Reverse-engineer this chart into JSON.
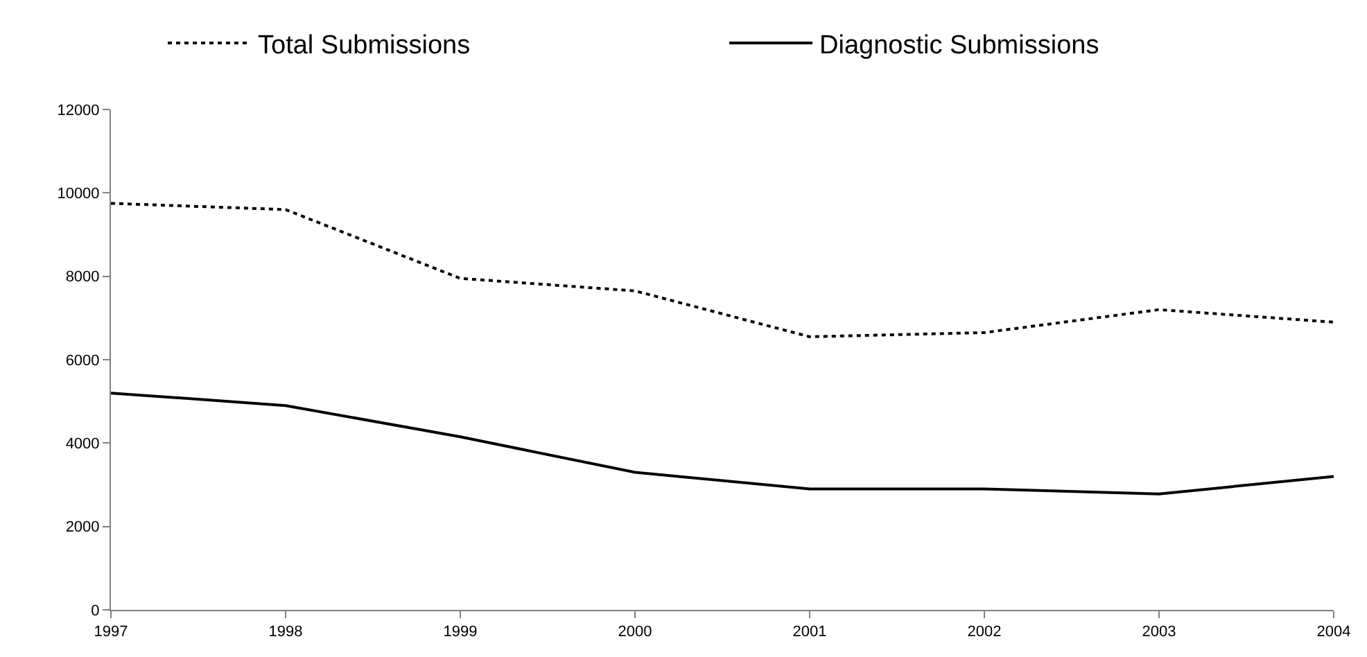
{
  "chart_data": {
    "type": "line",
    "x": [
      1997,
      1998,
      1999,
      2000,
      2001,
      2002,
      2003,
      2004
    ],
    "series": [
      {
        "name": "Total Submissions",
        "color": "#000000",
        "line_style": "dotted",
        "values": [
          9750,
          9600,
          7950,
          7650,
          6550,
          6650,
          7200,
          6900
        ]
      },
      {
        "name": "Diagnostic Submissions",
        "color": "#000000",
        "line_style": "solid",
        "values": [
          5200,
          4900,
          4150,
          3300,
          2900,
          2900,
          2780,
          3200
        ]
      }
    ],
    "xlim": [
      1997,
      2004
    ],
    "xticks": [
      1997,
      1998,
      1999,
      2000,
      2001,
      2002,
      2003,
      2004
    ],
    "ylim": [
      0,
      12000
    ],
    "yticks": [
      0,
      2000,
      4000,
      6000,
      8000,
      10000,
      12000
    ],
    "grid": false,
    "legend": "top",
    "marker": "none"
  }
}
